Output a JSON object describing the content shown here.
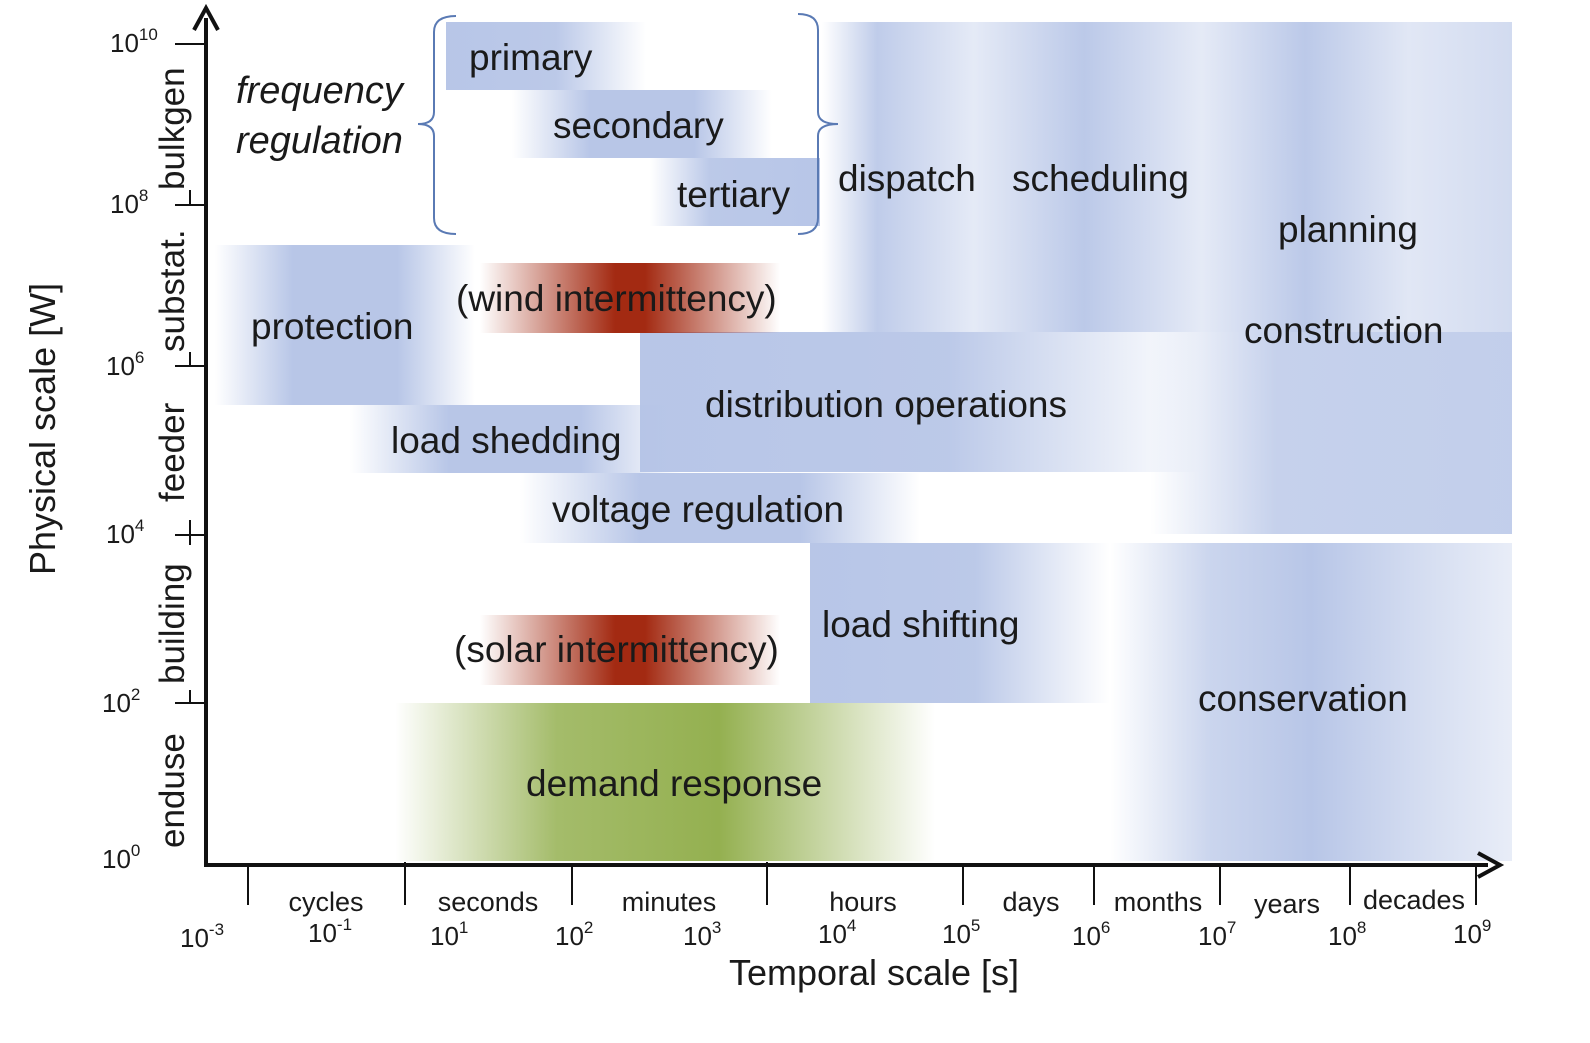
{
  "y_axis": {
    "title": "Physical scale [W]",
    "ticks": [
      {
        "base": "10",
        "exp": "10"
      },
      {
        "base": "10",
        "exp": "8"
      },
      {
        "base": "10",
        "exp": "6"
      },
      {
        "base": "10",
        "exp": "4"
      },
      {
        "base": "10",
        "exp": "2"
      },
      {
        "base": "10",
        "exp": "0"
      }
    ],
    "bands": [
      "bulkgen",
      "substat.",
      "feeder",
      "building",
      "enduse"
    ]
  },
  "x_axis": {
    "title": "Temporal scale [s]",
    "ticks": [
      {
        "base": "10",
        "exp": "-3"
      },
      {
        "base": "10",
        "exp": "-1"
      },
      {
        "base": "10",
        "exp": "1"
      },
      {
        "base": "10",
        "exp": "2"
      },
      {
        "base": "10",
        "exp": "3"
      },
      {
        "base": "10",
        "exp": "4"
      },
      {
        "base": "10",
        "exp": "5"
      },
      {
        "base": "10",
        "exp": "6"
      },
      {
        "base": "10",
        "exp": "7"
      },
      {
        "base": "10",
        "exp": "8"
      },
      {
        "base": "10",
        "exp": "9"
      }
    ],
    "categories": [
      "cycles",
      "seconds",
      "minutes",
      "hours",
      "days",
      "months",
      "years",
      "decades"
    ]
  },
  "regions": {
    "frequency_line1": "frequency",
    "frequency_line2": "regulation",
    "primary": "primary",
    "secondary": "secondary",
    "tertiary": "tertiary",
    "dispatch": "dispatch",
    "scheduling": "scheduling",
    "planning": "planning",
    "construction": "construction",
    "protection": "protection",
    "wind": "(wind intermittency)",
    "distribution": "distribution operations",
    "load_shedding": "load shedding",
    "voltage": "voltage regulation",
    "load_shifting": "load shifting",
    "solar": "(solar intermittency)",
    "conservation": "conservation",
    "demand_response": "demand response"
  },
  "colors": {
    "band_blue": "#b4c3e6",
    "band_red": "#a32a12",
    "band_green": "#94b050",
    "bracket": "#5a7ab4",
    "axis": "#111111"
  }
}
